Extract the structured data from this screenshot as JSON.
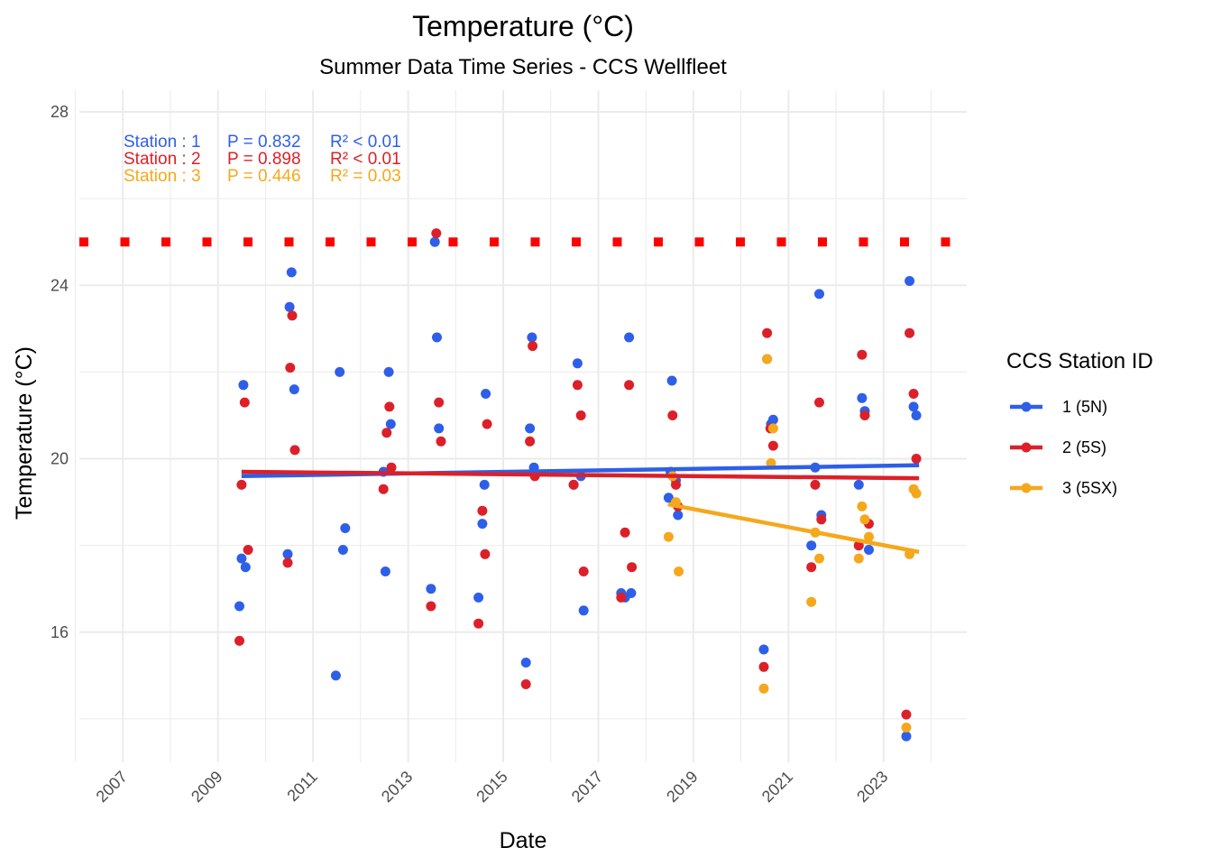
{
  "chart_data": {
    "type": "scatter",
    "title": "Temperature (°C)",
    "subtitle": "Summer Data Time Series - CCS Wellfleet",
    "xlabel": "Date",
    "ylabel": "Temperature (°C)",
    "xlim": [
      "2006-02-01",
      "2024-10-01"
    ],
    "ylim": [
      13,
      28.5
    ],
    "x_ticks": [
      "2007",
      "2009",
      "2011",
      "2013",
      "2015",
      "2017",
      "2019",
      "2021",
      "2023"
    ],
    "y_ticks": [
      16,
      20,
      24,
      28
    ],
    "grid": true,
    "threshold": {
      "value": 25,
      "color": "#ff0000",
      "style": "dotted"
    },
    "legend": {
      "title": "CCS Station ID",
      "position": "right",
      "entries": [
        "1 (5N)",
        "2 (5S)",
        "3 (5SX)"
      ]
    },
    "stats": [
      {
        "station": "Station : 1",
        "p": "P = 0.832",
        "r2": "R² < 0.01",
        "color": "#2e5fe8"
      },
      {
        "station": "Station : 2",
        "p": "P = 0.898",
        "r2": "R² < 0.01",
        "color": "#dc2029"
      },
      {
        "station": "Station : 3",
        "p": "P = 0.446",
        "r2": "R² = 0.03",
        "color": "#f5a81c"
      }
    ],
    "series": [
      {
        "name": "1 (5N)",
        "color": "#2e5fe8",
        "trend": [
          [
            "2009-07-01",
            19.6
          ],
          [
            "2023-10-01",
            19.85
          ]
        ],
        "points": [
          [
            "2009-06-15",
            16.6
          ],
          [
            "2009-07-01",
            17.7
          ],
          [
            "2009-07-15",
            21.7
          ],
          [
            "2009-08-01",
            17.5
          ],
          [
            "2010-06-20",
            17.8
          ],
          [
            "2010-07-05",
            23.5
          ],
          [
            "2010-07-20",
            24.3
          ],
          [
            "2010-08-10",
            21.6
          ],
          [
            "2011-06-25",
            15.0
          ],
          [
            "2011-07-25",
            22.0
          ],
          [
            "2011-08-20",
            17.9
          ],
          [
            "2011-09-05",
            18.4
          ],
          [
            "2012-06-25",
            19.7
          ],
          [
            "2012-07-10",
            17.4
          ],
          [
            "2012-08-05",
            22.0
          ],
          [
            "2012-08-20",
            20.8
          ],
          [
            "2013-06-25",
            17.0
          ],
          [
            "2013-07-25",
            25.0
          ],
          [
            "2013-08-10",
            22.8
          ],
          [
            "2013-08-25",
            20.7
          ],
          [
            "2014-06-25",
            16.8
          ],
          [
            "2014-07-25",
            18.5
          ],
          [
            "2014-08-10",
            19.4
          ],
          [
            "2014-08-20",
            21.5
          ],
          [
            "2015-06-25",
            15.3
          ],
          [
            "2015-07-25",
            20.7
          ],
          [
            "2015-08-10",
            22.8
          ],
          [
            "2015-08-25",
            19.8
          ],
          [
            "2016-06-25",
            19.4
          ],
          [
            "2016-07-25",
            22.2
          ],
          [
            "2016-08-20",
            19.6
          ],
          [
            "2016-09-10",
            16.5
          ],
          [
            "2017-06-25",
            16.9
          ],
          [
            "2017-07-25",
            16.8
          ],
          [
            "2017-08-25",
            22.8
          ],
          [
            "2017-09-10",
            16.9
          ],
          [
            "2018-06-25",
            19.1
          ],
          [
            "2018-07-10",
            19.7
          ],
          [
            "2018-07-20",
            21.8
          ],
          [
            "2018-08-20",
            19.5
          ],
          [
            "2018-09-05",
            18.7
          ],
          [
            "2020-06-25",
            15.6
          ],
          [
            "2020-07-20",
            22.3
          ],
          [
            "2020-08-20",
            20.8
          ],
          [
            "2020-09-05",
            20.9
          ],
          [
            "2021-06-25",
            18.0
          ],
          [
            "2021-07-25",
            19.8
          ],
          [
            "2021-08-25",
            23.8
          ],
          [
            "2021-09-10",
            18.7
          ],
          [
            "2022-06-25",
            19.4
          ],
          [
            "2022-07-20",
            21.4
          ],
          [
            "2022-08-10",
            21.1
          ],
          [
            "2022-09-10",
            17.9
          ],
          [
            "2023-06-25",
            13.6
          ],
          [
            "2023-07-20",
            24.1
          ],
          [
            "2023-08-20",
            21.2
          ],
          [
            "2023-09-10",
            21.0
          ]
        ]
      },
      {
        "name": "2 (5S)",
        "color": "#dc2029",
        "trend": [
          [
            "2009-07-01",
            19.7
          ],
          [
            "2023-10-01",
            19.55
          ]
        ],
        "points": [
          [
            "2009-06-15",
            15.8
          ],
          [
            "2009-07-01",
            19.4
          ],
          [
            "2009-07-25",
            21.3
          ],
          [
            "2009-08-20",
            17.9
          ],
          [
            "2010-06-20",
            17.6
          ],
          [
            "2010-07-10",
            22.1
          ],
          [
            "2010-07-25",
            23.3
          ],
          [
            "2010-08-15",
            20.2
          ],
          [
            "2012-06-25",
            19.3
          ],
          [
            "2012-07-20",
            20.6
          ],
          [
            "2012-08-10",
            21.2
          ],
          [
            "2012-08-25",
            19.8
          ],
          [
            "2013-06-25",
            16.6
          ],
          [
            "2013-08-05",
            25.2
          ],
          [
            "2013-08-25",
            21.3
          ],
          [
            "2013-09-10",
            20.4
          ],
          [
            "2014-06-25",
            16.2
          ],
          [
            "2014-07-25",
            18.8
          ],
          [
            "2014-08-15",
            17.8
          ],
          [
            "2014-08-30",
            20.8
          ],
          [
            "2015-06-25",
            14.8
          ],
          [
            "2015-07-25",
            20.4
          ],
          [
            "2015-08-15",
            22.6
          ],
          [
            "2015-09-01",
            19.6
          ],
          [
            "2016-06-25",
            19.4
          ],
          [
            "2016-07-25",
            21.7
          ],
          [
            "2016-08-20",
            21.0
          ],
          [
            "2016-09-10",
            17.4
          ],
          [
            "2017-06-25",
            16.8
          ],
          [
            "2017-07-25",
            18.3
          ],
          [
            "2017-08-25",
            21.7
          ],
          [
            "2017-09-15",
            17.5
          ],
          [
            "2018-07-25",
            21.0
          ],
          [
            "2018-08-20",
            19.4
          ],
          [
            "2018-09-05",
            18.9
          ],
          [
            "2020-06-25",
            15.2
          ],
          [
            "2020-07-20",
            22.9
          ],
          [
            "2020-08-15",
            20.7
          ],
          [
            "2020-09-05",
            20.3
          ],
          [
            "2021-06-25",
            17.5
          ],
          [
            "2021-07-25",
            19.4
          ],
          [
            "2021-08-25",
            21.3
          ],
          [
            "2021-09-10",
            18.6
          ],
          [
            "2022-06-25",
            18.0
          ],
          [
            "2022-07-20",
            22.4
          ],
          [
            "2022-08-10",
            21.0
          ],
          [
            "2022-09-10",
            18.5
          ],
          [
            "2023-06-25",
            14.1
          ],
          [
            "2023-07-20",
            22.9
          ],
          [
            "2023-08-20",
            21.5
          ],
          [
            "2023-09-10",
            20.0
          ]
        ]
      },
      {
        "name": "3 (5SX)",
        "color": "#f5a81c",
        "trend": [
          [
            "2018-06-20",
            18.95
          ],
          [
            "2023-10-01",
            17.85
          ]
        ],
        "points": [
          [
            "2018-06-25",
            18.2
          ],
          [
            "2018-07-25",
            19.6
          ],
          [
            "2018-08-20",
            19.0
          ],
          [
            "2018-09-10",
            17.4
          ],
          [
            "2020-06-25",
            14.7
          ],
          [
            "2020-07-20",
            22.3
          ],
          [
            "2020-08-20",
            19.9
          ],
          [
            "2020-09-05",
            20.7
          ],
          [
            "2021-06-25",
            16.7
          ],
          [
            "2021-07-25",
            18.3
          ],
          [
            "2021-08-25",
            17.7
          ],
          [
            "2022-06-25",
            17.7
          ],
          [
            "2022-07-20",
            18.9
          ],
          [
            "2022-08-10",
            18.6
          ],
          [
            "2022-09-10",
            18.2
          ],
          [
            "2023-06-25",
            13.8
          ],
          [
            "2023-07-20",
            17.8
          ],
          [
            "2023-08-20",
            19.3
          ],
          [
            "2023-09-10",
            19.2
          ]
        ]
      }
    ]
  }
}
